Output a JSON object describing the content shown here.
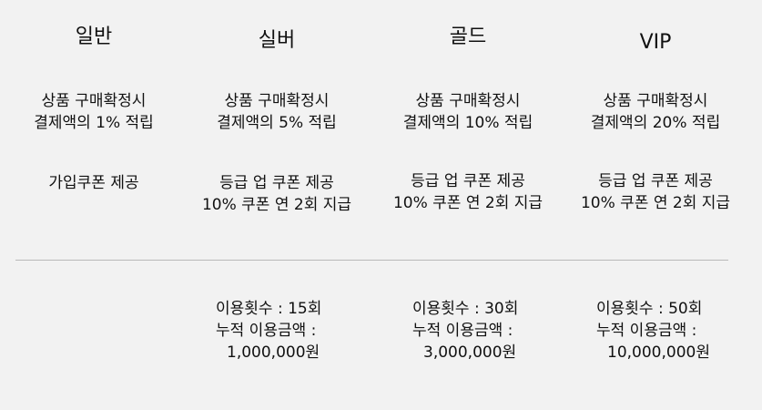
{
  "tiers": [
    {
      "name": "일반",
      "reward_line1": "상품 구매확정시",
      "reward_line2": "결제액의 1% 적립",
      "coupon_line1": "가입쿠폰 제공",
      "coupon_line2": ""
    },
    {
      "name": "실버",
      "reward_line1": "상품 구매확정시",
      "reward_line2": "결제액의 5% 적립",
      "coupon_line1": "등급 업 쿠폰 제공",
      "coupon_line2": "10% 쿠폰 연 2회 지급",
      "usage_count": "이용횟수 : 15회",
      "amount_label": "누적 이용금액 :",
      "amount_value": "1,000,000원"
    },
    {
      "name": "골드",
      "reward_line1": "상품 구매확정시",
      "reward_line2": "결제액의 10% 적립",
      "coupon_line1": "등급 업 쿠폰 제공",
      "coupon_line2": "10% 쿠폰 연 2회 지급",
      "usage_count": "이용횟수 : 30회",
      "amount_label": "누적 이용금액 :",
      "amount_value": "3,000,000원"
    },
    {
      "name": "VIP",
      "reward_line1": "상품 구매확정시",
      "reward_line2": "결제액의 20% 적립",
      "coupon_line1": "등급 업 쿠폰 제공",
      "coupon_line2": "10% 쿠폰 연 2회 지급",
      "usage_count": "이용횟수 : 50회",
      "amount_label": "누적 이용금액 :",
      "amount_value": "10,000,000원"
    }
  ]
}
